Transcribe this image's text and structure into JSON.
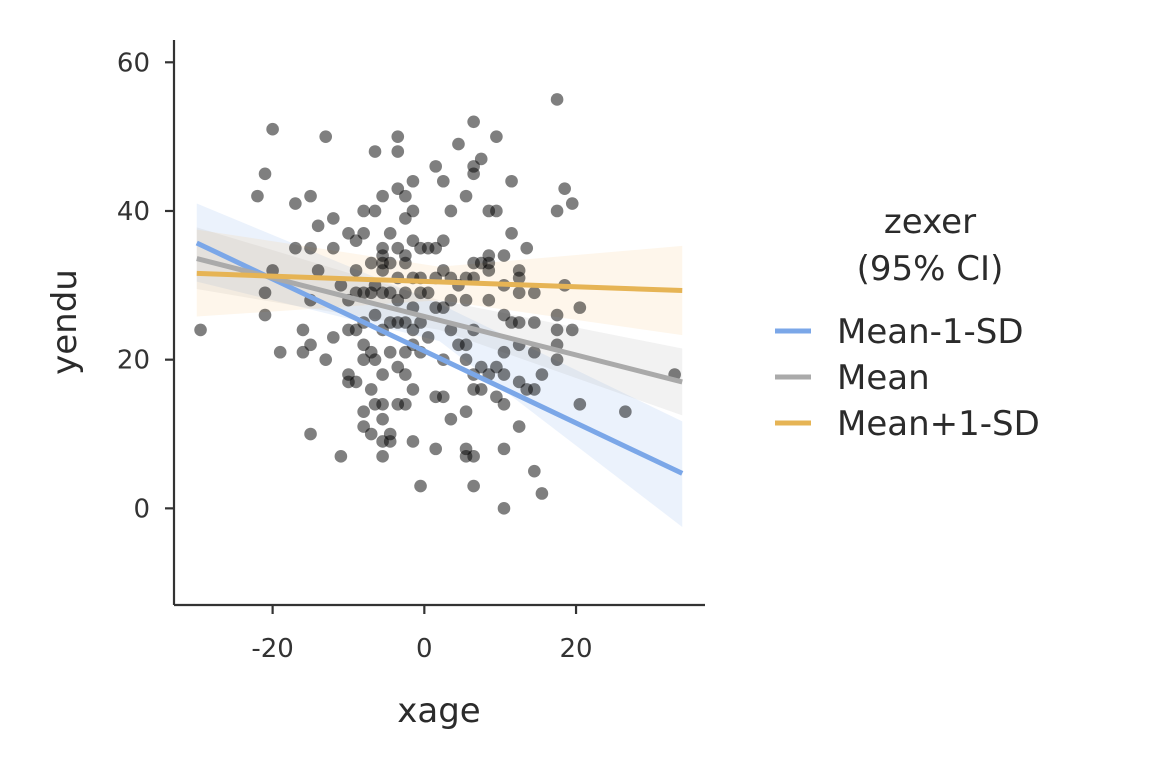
{
  "chart_data": {
    "type": "scatter",
    "xlabel": "xage",
    "ylabel": "yendu",
    "xlim": [
      -33,
      37
    ],
    "ylim": [
      -13,
      63
    ],
    "x_ticks": [
      -20,
      0,
      20
    ],
    "y_ticks": [
      0,
      20,
      40,
      60
    ],
    "x_tick_labels": [
      "-20",
      "0",
      "20"
    ],
    "y_tick_labels": [
      "0",
      "20",
      "40",
      "60"
    ],
    "grid": false,
    "legend": {
      "title_line1": "zexer",
      "title_line2": "(95% CI)",
      "placement": "right",
      "entries": [
        "Mean-1-SD",
        "Mean",
        "Mean+1-SD"
      ]
    },
    "points": [
      [
        -29.5,
        24
      ],
      [
        -22,
        42
      ],
      [
        -21,
        45
      ],
      [
        -21,
        26
      ],
      [
        -21,
        29
      ],
      [
        -20,
        51
      ],
      [
        -20,
        32
      ],
      [
        -19,
        21
      ],
      [
        -17,
        41
      ],
      [
        -17,
        35
      ],
      [
        -16,
        24
      ],
      [
        -16,
        21
      ],
      [
        -15,
        42
      ],
      [
        -15,
        35
      ],
      [
        -15,
        28
      ],
      [
        -15,
        22
      ],
      [
        -15,
        10
      ],
      [
        -14,
        38
      ],
      [
        -14,
        32
      ],
      [
        -13,
        50
      ],
      [
        -13,
        20
      ],
      [
        -12,
        39
      ],
      [
        -12,
        35
      ],
      [
        -12,
        23
      ],
      [
        -11,
        7
      ],
      [
        -11,
        30
      ],
      [
        -10,
        37
      ],
      [
        -10,
        28
      ],
      [
        -10,
        24
      ],
      [
        -10,
        18
      ],
      [
        -10,
        17
      ],
      [
        -9,
        36
      ],
      [
        -9,
        32
      ],
      [
        -9,
        29
      ],
      [
        -9,
        24
      ],
      [
        -9,
        17
      ],
      [
        -8,
        40
      ],
      [
        -8,
        37
      ],
      [
        -8,
        29
      ],
      [
        -8,
        25
      ],
      [
        -8,
        22
      ],
      [
        -8,
        20
      ],
      [
        -8,
        13
      ],
      [
        -8,
        11
      ],
      [
        -7,
        33
      ],
      [
        -7,
        29
      ],
      [
        -7,
        21
      ],
      [
        -7,
        16
      ],
      [
        -7,
        10
      ],
      [
        -6.5,
        48
      ],
      [
        -6.5,
        40
      ],
      [
        -6.5,
        30
      ],
      [
        -6.5,
        26
      ],
      [
        -6.5,
        20
      ],
      [
        -6.5,
        14
      ],
      [
        -5.5,
        42
      ],
      [
        -5.5,
        35
      ],
      [
        -5.5,
        34
      ],
      [
        -5.5,
        33
      ],
      [
        -5.5,
        32
      ],
      [
        -5.5,
        29
      ],
      [
        -5.5,
        24
      ],
      [
        -5.5,
        18
      ],
      [
        -5.5,
        14
      ],
      [
        -5.5,
        12
      ],
      [
        -5.5,
        9
      ],
      [
        -5.5,
        7
      ],
      [
        -4.5,
        37
      ],
      [
        -4.5,
        33
      ],
      [
        -4.5,
        29
      ],
      [
        -4.5,
        25
      ],
      [
        -4.5,
        21
      ],
      [
        -4.5,
        10
      ],
      [
        -4.5,
        9
      ],
      [
        -3.5,
        50
      ],
      [
        -3.5,
        48
      ],
      [
        -3.5,
        43
      ],
      [
        -3.5,
        35
      ],
      [
        -3.5,
        31
      ],
      [
        -3.5,
        28
      ],
      [
        -3.5,
        25
      ],
      [
        -3.5,
        19
      ],
      [
        -3.5,
        14
      ],
      [
        -2.5,
        42
      ],
      [
        -2.5,
        39
      ],
      [
        -2.5,
        34
      ],
      [
        -2.5,
        33
      ],
      [
        -2.5,
        29
      ],
      [
        -2.5,
        25
      ],
      [
        -2.5,
        21
      ],
      [
        -2.5,
        18
      ],
      [
        -2.5,
        14
      ],
      [
        -1.5,
        44
      ],
      [
        -1.5,
        40
      ],
      [
        -1.5,
        36
      ],
      [
        -1.5,
        31
      ],
      [
        -1.5,
        27
      ],
      [
        -1.5,
        24
      ],
      [
        -1.5,
        22
      ],
      [
        -1.5,
        16
      ],
      [
        -1.5,
        9
      ],
      [
        -0.5,
        35
      ],
      [
        -0.5,
        31
      ],
      [
        -0.5,
        29
      ],
      [
        -0.5,
        25
      ],
      [
        -0.5,
        21
      ],
      [
        -0.5,
        3
      ],
      [
        0.5,
        35
      ],
      [
        0.5,
        29
      ],
      [
        0.5,
        23
      ],
      [
        1.5,
        46
      ],
      [
        1.5,
        35
      ],
      [
        1.5,
        31
      ],
      [
        1.5,
        27
      ],
      [
        1.5,
        15
      ],
      [
        1.5,
        8
      ],
      [
        2.5,
        44
      ],
      [
        2.5,
        36
      ],
      [
        2.5,
        32
      ],
      [
        2.5,
        27
      ],
      [
        2.5,
        20
      ],
      [
        2.5,
        15
      ],
      [
        3.5,
        40
      ],
      [
        3.5,
        31
      ],
      [
        3.5,
        28
      ],
      [
        3.5,
        24
      ],
      [
        3.5,
        12
      ],
      [
        4.5,
        49
      ],
      [
        4.5,
        30
      ],
      [
        4.5,
        22
      ],
      [
        5.5,
        42
      ],
      [
        5.5,
        31
      ],
      [
        5.5,
        28
      ],
      [
        5.5,
        22
      ],
      [
        5.5,
        20
      ],
      [
        5.5,
        13
      ],
      [
        5.5,
        8
      ],
      [
        5.5,
        7
      ],
      [
        6.5,
        52
      ],
      [
        6.5,
        46
      ],
      [
        6.5,
        45
      ],
      [
        6.5,
        33
      ],
      [
        6.5,
        31
      ],
      [
        6.5,
        24
      ],
      [
        6.5,
        18
      ],
      [
        6.5,
        16
      ],
      [
        6.5,
        7
      ],
      [
        6.5,
        3
      ],
      [
        7.5,
        47
      ],
      [
        7.5,
        33
      ],
      [
        7.5,
        19
      ],
      [
        7.5,
        16
      ],
      [
        8.5,
        40
      ],
      [
        8.5,
        34
      ],
      [
        8.5,
        33
      ],
      [
        8.5,
        32
      ],
      [
        8.5,
        28
      ],
      [
        8.5,
        18
      ],
      [
        9.5,
        50
      ],
      [
        9.5,
        40
      ],
      [
        9.5,
        19
      ],
      [
        9.5,
        15
      ],
      [
        10.5,
        34
      ],
      [
        10.5,
        30
      ],
      [
        10.5,
        26
      ],
      [
        10.5,
        21
      ],
      [
        10.5,
        18
      ],
      [
        10.5,
        14
      ],
      [
        10.5,
        8
      ],
      [
        10.5,
        0
      ],
      [
        11.5,
        44
      ],
      [
        11.5,
        37
      ],
      [
        11.5,
        25
      ],
      [
        12.5,
        32
      ],
      [
        12.5,
        31
      ],
      [
        12.5,
        29
      ],
      [
        12.5,
        25
      ],
      [
        12.5,
        22
      ],
      [
        12.5,
        17
      ],
      [
        12.5,
        11
      ],
      [
        13.5,
        35
      ],
      [
        13.5,
        16
      ],
      [
        14.5,
        29
      ],
      [
        14.5,
        25
      ],
      [
        14.5,
        21
      ],
      [
        14.5,
        16
      ],
      [
        14.5,
        5
      ],
      [
        15.5,
        18
      ],
      [
        15.5,
        2
      ],
      [
        17.5,
        55
      ],
      [
        17.5,
        40
      ],
      [
        17.5,
        26
      ],
      [
        17.5,
        24
      ],
      [
        17.5,
        22
      ],
      [
        17.5,
        20
      ],
      [
        18.5,
        43
      ],
      [
        18.5,
        30
      ],
      [
        19.5,
        41
      ],
      [
        19.5,
        24
      ],
      [
        20.5,
        27
      ],
      [
        20.5,
        14
      ],
      [
        26.5,
        13
      ],
      [
        33,
        18
      ]
    ],
    "series": [
      {
        "name": "Mean-1-SD",
        "color": "#7ba7e8",
        "band_color": "#7ba7e8",
        "x": [
          -30,
          34
        ],
        "y": [
          35.7,
          4.7
        ],
        "band_x": [
          -30,
          2,
          34
        ],
        "band_lower": [
          30.5,
          22.5,
          -2.5
        ],
        "band_upper": [
          41,
          27.5,
          11.7
        ]
      },
      {
        "name": "Mean",
        "color": "#aaaaaa",
        "band_color": "#aaaaaa",
        "x": [
          -30,
          34
        ],
        "y": [
          33.6,
          17.0
        ],
        "band_x": [
          -30,
          2,
          34
        ],
        "band_lower": [
          29.5,
          24,
          12.5
        ],
        "band_upper": [
          37.8,
          28,
          21.5
        ]
      },
      {
        "name": "Mean+1-SD",
        "color": "#e6b455",
        "band_color": "#f6c37a",
        "x": [
          -30,
          34
        ],
        "y": [
          31.6,
          29.3
        ],
        "band_x": [
          -30,
          2,
          34
        ],
        "band_lower": [
          25.8,
          28,
          23.3
        ],
        "band_upper": [
          37.5,
          32.5,
          35.3
        ]
      }
    ]
  }
}
